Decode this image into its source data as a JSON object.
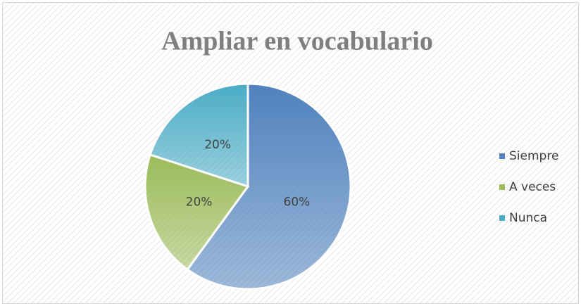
{
  "chart_data": {
    "type": "pie",
    "title": "Ampliar en vocabulario",
    "categories": [
      "Siempre",
      "A veces",
      "Nunca"
    ],
    "values": [
      60,
      20,
      20
    ],
    "value_labels": [
      "60%",
      "20%",
      "20%"
    ],
    "colors": [
      "#4f81bd",
      "#9bbb59",
      "#4bacc6"
    ],
    "legend": "right"
  }
}
